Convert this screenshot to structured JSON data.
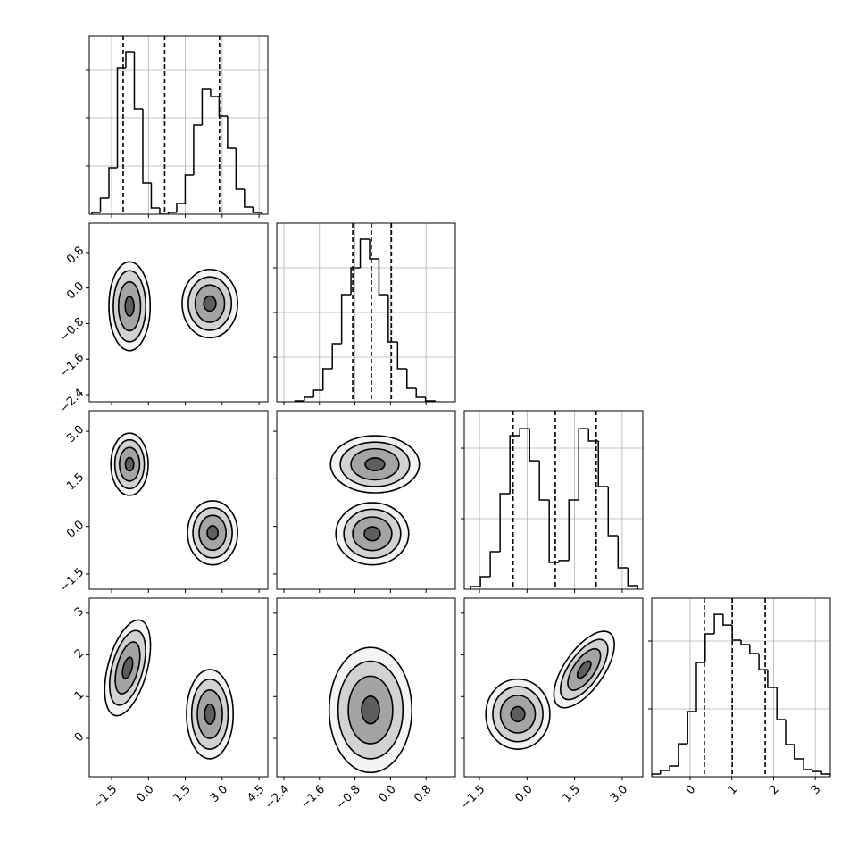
{
  "chart_data": {
    "type": "corner",
    "grid": true,
    "hist_color": "#000000",
    "contour_color": "#000000",
    "contour_fills": [
      "#f4f4f4",
      "#d2d2d2",
      "#a4a4a4",
      "#5e5e5e"
    ],
    "variables": [
      {
        "lim": [
          -2.41,
          4.86
        ],
        "ticks": [
          {
            "value": -1.5,
            "label": "−1.5"
          },
          {
            "value": 0.0,
            "label": "0.0"
          },
          1.5,
          {
            "value": 3.0,
            "label": "3.0"
          },
          4.5
        ]
      },
      {
        "lim": [
          -2.56,
          1.46
        ],
        "ticks": [
          {
            "value": -2.4,
            "label": "−2.4"
          },
          {
            "value": -1.6,
            "label": "−1.6"
          },
          {
            "value": -0.8,
            "label": "−0.8"
          },
          {
            "value": 0.0,
            "label": "0.0"
          },
          0.8
        ]
      },
      {
        "lim": [
          -1.98,
          3.65
        ],
        "ticks": [
          {
            "value": -1.5,
            "label": "−1.5"
          },
          {
            "value": 0.0,
            "label": "0.0"
          },
          1.5,
          {
            "value": 3.0,
            "label": "3.0"
          }
        ]
      },
      {
        "lim": [
          -0.92,
          3.36
        ],
        "ticks": [
          0,
          1,
          2,
          3
        ]
      }
    ],
    "histograms": [
      {
        "bins": [
          -2.3,
          -1.955,
          -1.61,
          -1.265,
          -0.92,
          -0.575,
          -0.23,
          0.115,
          0.46,
          0.805,
          1.15,
          1.495,
          1.84,
          2.185,
          2.53,
          2.875,
          3.22,
          3.565,
          3.91,
          4.255,
          4.6
        ],
        "counts": [
          19,
          167,
          481,
          1519,
          1685,
          1093,
          324,
          65,
          0,
          19,
          111,
          407,
          926,
          1296,
          1222,
          1019,
          685,
          259,
          74,
          19
        ],
        "ylim": [
          0,
          1852
        ],
        "yticks": [
          500,
          1000,
          1500
        ],
        "quantiles": [
          -1.03,
          0.66,
          2.89
        ]
      },
      {
        "bins": [
          -2.15,
          -1.94,
          -1.73,
          -1.52,
          -1.31,
          -1.1,
          -0.89,
          -0.68,
          -0.47,
          -0.26,
          -0.05,
          0.16,
          0.37,
          0.58,
          0.79,
          1.0
        ],
        "counts": [
          10,
          50,
          130,
          370,
          650,
          1200,
          1500,
          1820,
          1600,
          1200,
          670,
          370,
          150,
          50,
          10
        ],
        "ylim": [
          0,
          2000
        ],
        "yticks": [
          500,
          1000,
          1500
        ],
        "quantiles": [
          -0.85,
          -0.43,
          0.02
        ]
      },
      {
        "bins": [
          -1.78,
          -1.47,
          -1.16,
          -0.85,
          -0.54,
          -0.23,
          0.08,
          0.39,
          0.7,
          1.01,
          1.32,
          1.63,
          1.94,
          2.25,
          2.56,
          2.87,
          3.18,
          3.49
        ],
        "counts": [
          19,
          89,
          266,
          677,
          1089,
          1139,
          911,
          633,
          190,
          203,
          633,
          1139,
          1051,
          728,
          380,
          152,
          25
        ],
        "ylim": [
          0,
          1266
        ],
        "yticks": [
          500,
          1000
        ],
        "quantiles": [
          -0.44,
          0.89,
          2.18
        ]
      },
      {
        "bins": [
          -0.92,
          -0.71,
          -0.49,
          -0.28,
          -0.06,
          0.15,
          0.36,
          0.58,
          0.79,
          1.01,
          1.22,
          1.43,
          1.65,
          1.86,
          2.08,
          2.29,
          2.5,
          2.72,
          2.93,
          3.15,
          3.36
        ],
        "counts": [
          20,
          46,
          79,
          243,
          480,
          842,
          1053,
          1197,
          1118,
          1007,
          974,
          908,
          789,
          658,
          421,
          237,
          132,
          53,
          39,
          20
        ],
        "ylim": [
          0,
          1316
        ],
        "yticks": [
          500,
          1000
        ],
        "quantiles": [
          0.34,
          1.01,
          1.8
        ]
      }
    ],
    "pairs": [
      {
        "x_var": 0,
        "y_var": 1,
        "blobs": [
          {
            "x": -0.77,
            "y": -0.41,
            "tilt": 0,
            "contours": [
              [
                0.84,
                1.0
              ],
              [
                0.66,
                0.8
              ],
              [
                0.45,
                0.55
              ],
              [
                0.18,
                0.22
              ]
            ]
          },
          {
            "x": 2.5,
            "y": -0.35,
            "tilt": 0,
            "contours": [
              [
                1.13,
                0.77
              ],
              [
                0.88,
                0.6
              ],
              [
                0.6,
                0.42
              ],
              [
                0.25,
                0.17
              ]
            ]
          }
        ]
      },
      {
        "x_var": 0,
        "y_var": 2,
        "blobs": [
          {
            "x": -0.77,
            "y": 1.96,
            "tilt": 0,
            "contours": [
              [
                0.76,
                0.98
              ],
              [
                0.6,
                0.77
              ],
              [
                0.41,
                0.53
              ],
              [
                0.17,
                0.21
              ]
            ]
          },
          {
            "x": 2.61,
            "y": -0.2,
            "tilt": 0,
            "contours": [
              [
                1.02,
                1.01
              ],
              [
                0.8,
                0.79
              ],
              [
                0.55,
                0.55
              ],
              [
                0.22,
                0.22
              ]
            ]
          }
        ]
      },
      {
        "x_var": 0,
        "y_var": 3,
        "blobs": [
          {
            "x": -0.85,
            "y": 1.69,
            "tilt": 15,
            "contours": [
              [
                0.8,
                1.18
              ],
              [
                0.63,
                0.92
              ],
              [
                0.43,
                0.64
              ],
              [
                0.18,
                0.26
              ]
            ]
          },
          {
            "x": 2.5,
            "y": 0.58,
            "tilt": 0,
            "contours": [
              [
                0.95,
                1.07
              ],
              [
                0.74,
                0.84
              ],
              [
                0.51,
                0.58
              ],
              [
                0.21,
                0.24
              ]
            ]
          }
        ]
      },
      {
        "x_var": 1,
        "y_var": 2,
        "blobs": [
          {
            "x": -0.35,
            "y": 1.96,
            "tilt": 0,
            "contours": [
              [
                1.0,
                0.9
              ],
              [
                0.78,
                0.7
              ],
              [
                0.54,
                0.49
              ],
              [
                0.22,
                0.2
              ]
            ]
          },
          {
            "x": -0.41,
            "y": -0.23,
            "tilt": 0,
            "contours": [
              [
                0.82,
                0.98
              ],
              [
                0.64,
                0.77
              ],
              [
                0.44,
                0.53
              ],
              [
                0.18,
                0.22
              ]
            ]
          }
        ]
      },
      {
        "x_var": 1,
        "y_var": 3,
        "blobs": [
          {
            "x": -0.45,
            "y": 0.68,
            "tilt": 0,
            "contours": [
              [
                0.93,
                1.5
              ],
              [
                0.73,
                1.17
              ],
              [
                0.5,
                0.81
              ],
              [
                0.2,
                0.33
              ]
            ]
          }
        ]
      },
      {
        "x_var": 2,
        "y_var": 3,
        "blobs": [
          {
            "x": -0.29,
            "y": 0.58,
            "tilt": 0,
            "contours": [
              [
                1.01,
                0.84
              ],
              [
                0.79,
                0.66
              ],
              [
                0.55,
                0.45
              ],
              [
                0.22,
                0.18
              ]
            ]
          },
          {
            "x": 1.8,
            "y": 1.65,
            "tilt": 35,
            "contours": [
              [
                0.62,
                1.07
              ],
              [
                0.48,
                0.84
              ],
              [
                0.33,
                0.58
              ],
              [
                0.14,
                0.24
              ]
            ]
          }
        ]
      }
    ]
  }
}
